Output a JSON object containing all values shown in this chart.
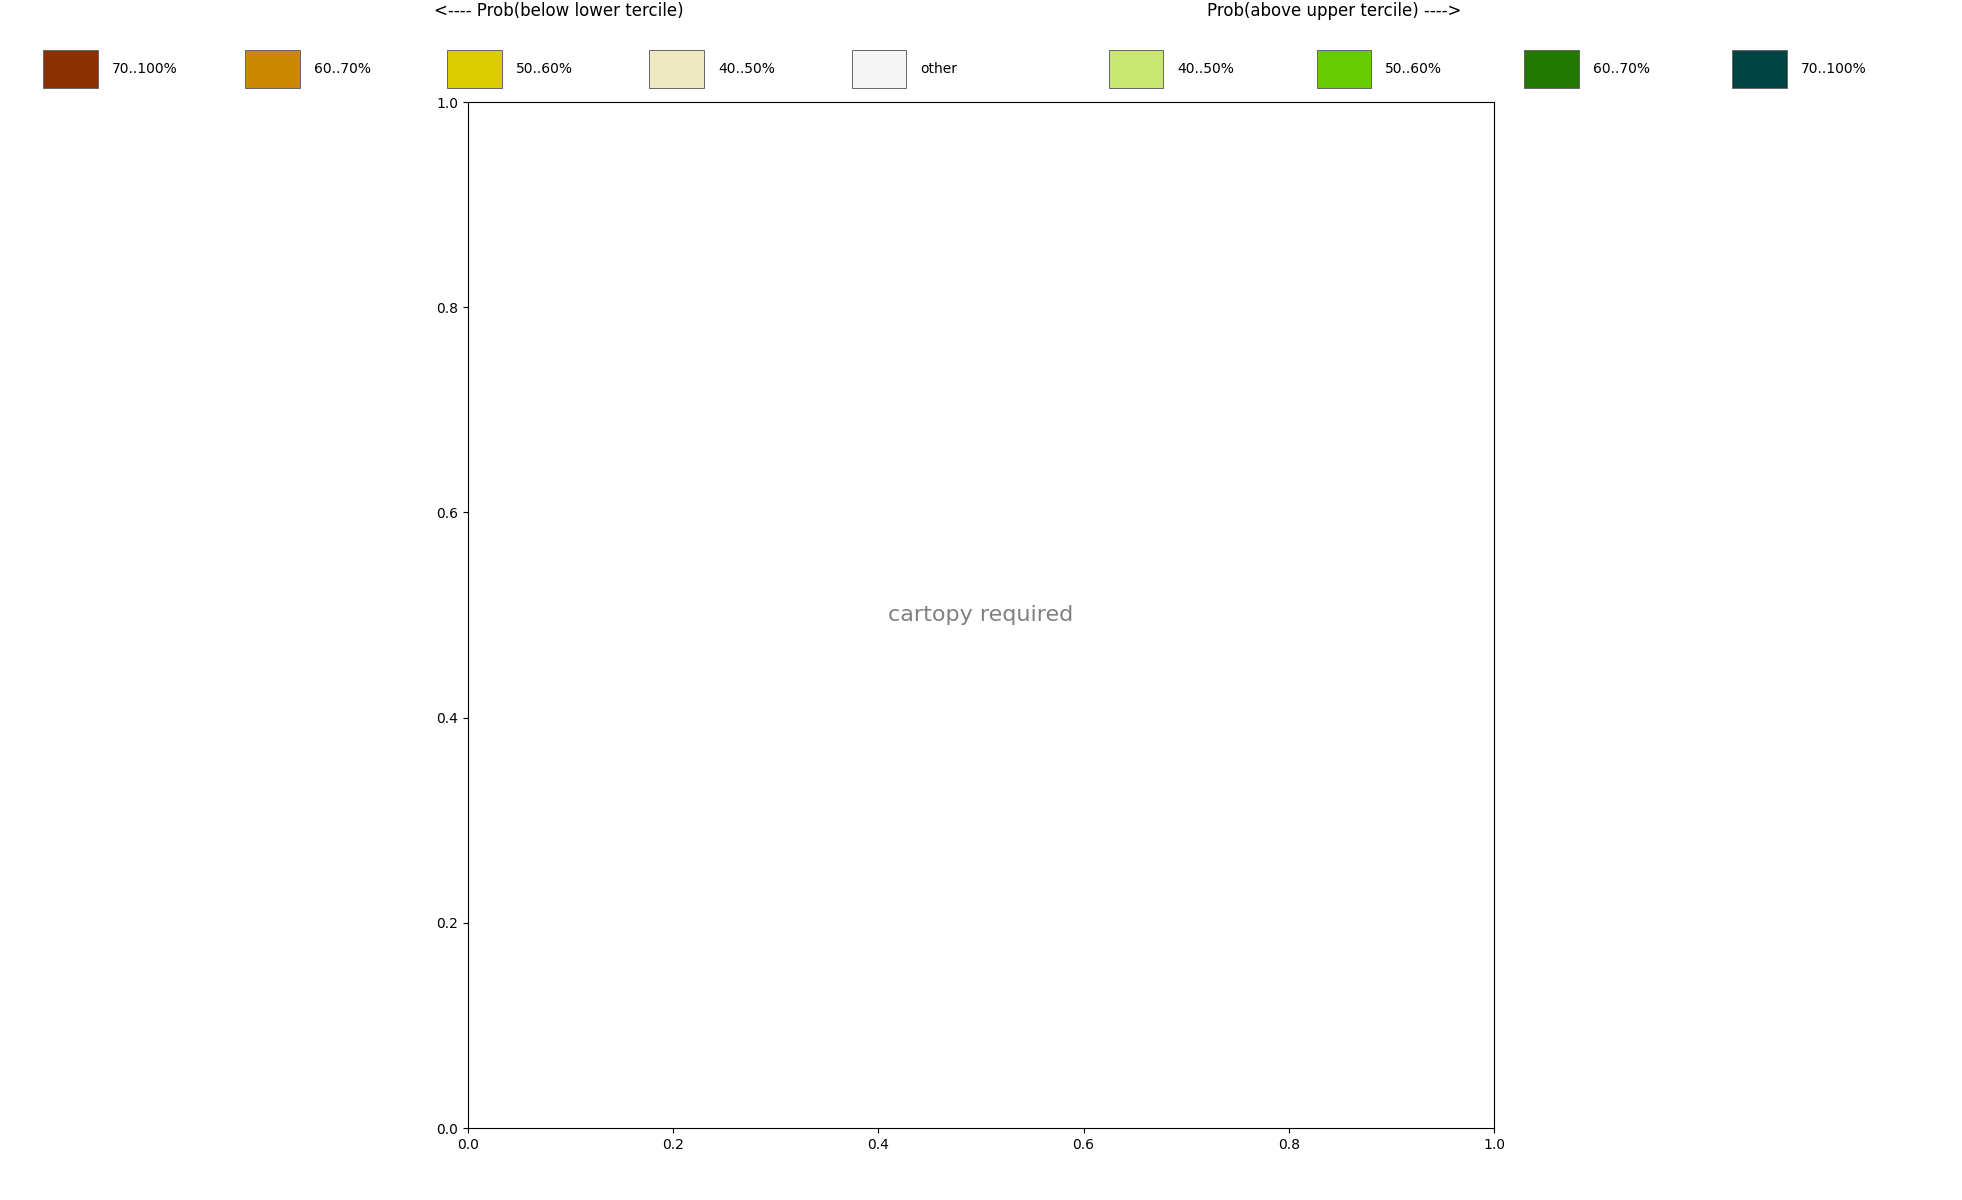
{
  "legend_left_title": "<---- Prob(below lower tercile)",
  "legend_right_title": "Prob(above upper tercile) ---->",
  "legend_left": [
    {
      "color": "#8B3000",
      "label": "70..100%"
    },
    {
      "color": "#CC8800",
      "label": "60..70%"
    },
    {
      "color": "#DDCC00",
      "label": "50..60%"
    },
    {
      "color": "#EEE8C0",
      "label": "40..50%"
    },
    {
      "color": "#F5F5F5",
      "label": "other"
    }
  ],
  "legend_right": [
    {
      "color": "#C8E870",
      "label": "40..50%"
    },
    {
      "color": "#66CC00",
      "label": "50..60%"
    },
    {
      "color": "#227700",
      "label": "60..70%"
    },
    {
      "color": "#004444",
      "label": "70..100%"
    }
  ],
  "figsize": [
    19.62,
    12.0
  ],
  "dpi": 100,
  "figure_bg": "#FFFFFF",
  "grid_lons": [
    -30,
    0,
    30,
    60
  ],
  "grid_lats": [
    30,
    45,
    60,
    75
  ],
  "map_lon_min": -55,
  "map_lon_max": 75,
  "map_lat_min": 22,
  "map_lat_max": 78
}
